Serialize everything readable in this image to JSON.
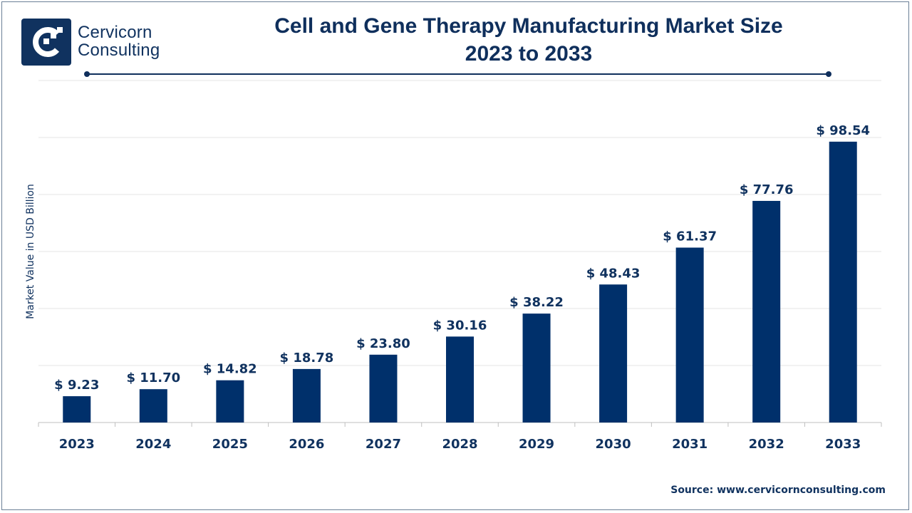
{
  "brand": {
    "name_line1": "Cervicorn",
    "name_line2": "Consulting"
  },
  "colors": {
    "bar": "#00306b",
    "title": "#0f2f5c",
    "text": "#10325f",
    "grid": "#e6e6e6",
    "axis": "#bfbfbf"
  },
  "chart_data": {
    "type": "bar",
    "title": "Cell and Gene Therapy Manufacturing Market Size",
    "subtitle": "2023 to 2033",
    "xlabel": "",
    "ylabel": "Market Value in USD Billion",
    "categories": [
      "2023",
      "2024",
      "2025",
      "2026",
      "2027",
      "2028",
      "2029",
      "2030",
      "2031",
      "2032",
      "2033"
    ],
    "values": [
      9.23,
      11.7,
      14.82,
      18.78,
      23.8,
      30.16,
      38.22,
      48.43,
      61.37,
      77.76,
      98.54
    ],
    "data_labels": [
      "$ 9.23",
      "$ 11.70",
      "$ 14.82",
      "$ 18.78",
      "$ 23.80",
      "$ 30.16",
      "$ 38.22",
      "$ 48.43",
      "$ 61.37",
      "$ 77.76",
      "$ 98.54"
    ],
    "ylim": [
      0,
      120
    ],
    "gridlines": true,
    "legend": "none"
  },
  "source": "Source: www.cervicornconsulting.com"
}
